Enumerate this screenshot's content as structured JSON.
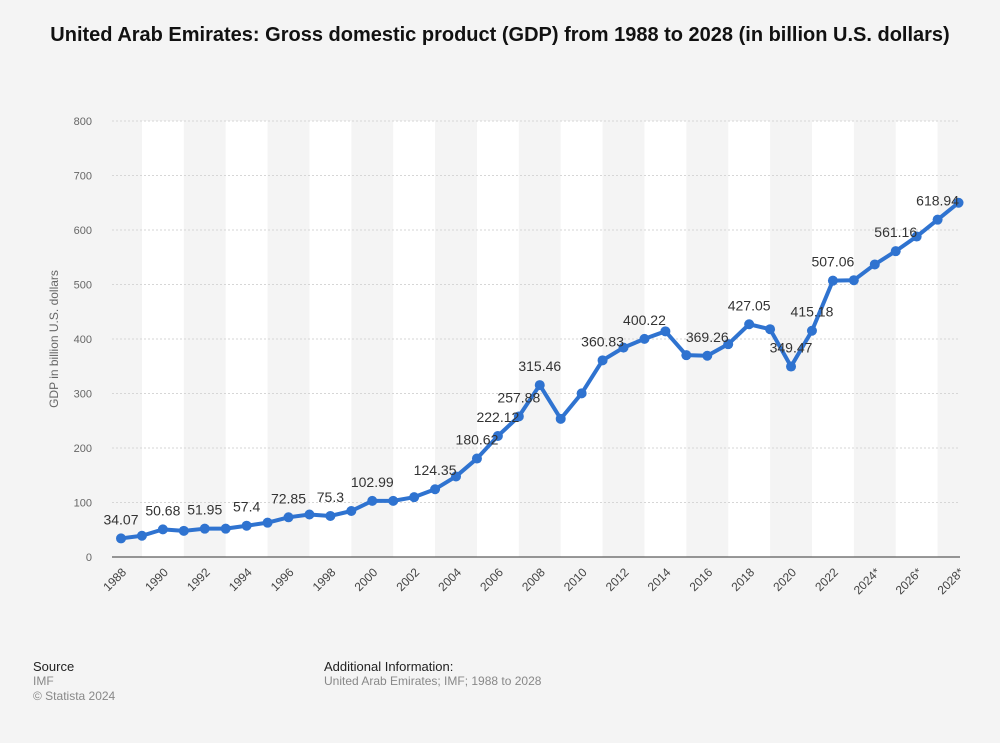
{
  "title": "United Arab Emirates: Gross domestic product (GDP) from 1988 to 2028 (in billion U.S. dollars)",
  "footer": {
    "source_heading": "Source",
    "source_name": "IMF",
    "copyright": "© Statista 2024",
    "info_heading": "Additional Information:",
    "info_text": "United Arab Emirates; IMF; 1988 to 2028"
  },
  "colors": {
    "line": "#2f73d0",
    "band": "#ffffff",
    "grid": "#d6d6d6"
  },
  "chart_data": {
    "type": "line",
    "ylabel": "GDP in billion U.S. dollars",
    "ylim": [
      0,
      800
    ],
    "yticks": [
      0,
      100,
      200,
      300,
      400,
      500,
      600,
      700,
      800
    ],
    "x": [
      "1988",
      "1989",
      "1990",
      "1991",
      "1992",
      "1993",
      "1994",
      "1995",
      "1996",
      "1997",
      "1998",
      "1999",
      "2000",
      "2001",
      "2002",
      "2003",
      "2004",
      "2005",
      "2006",
      "2007",
      "2008",
      "2009",
      "2010",
      "2011",
      "2012",
      "2013",
      "2014",
      "2015",
      "2016",
      "2017",
      "2018",
      "2019",
      "2020",
      "2021",
      "2022",
      "2023",
      "2024*",
      "2025*",
      "2026*",
      "2027*",
      "2028*"
    ],
    "xtick_labels": [
      "1988",
      "1990",
      "1992",
      "1994",
      "1996",
      "1998",
      "2000",
      "2002",
      "2004",
      "2006",
      "2008",
      "2010",
      "2012",
      "2014",
      "2016",
      "2018",
      "2020",
      "2022",
      "2024*",
      "2026*",
      "2028*"
    ],
    "values": [
      34.07,
      39.0,
      50.68,
      48.0,
      51.95,
      52.0,
      57.4,
      63.0,
      72.85,
      78.0,
      75.3,
      84.4,
      102.99,
      103.0,
      109.8,
      124.35,
      147.8,
      180.62,
      222.12,
      257.88,
      315.46,
      253.5,
      300.2,
      360.83,
      384.2,
      400.22,
      414.1,
      370.3,
      369.26,
      390.5,
      427.05,
      417.99,
      349.47,
      415.18,
      507.06,
      507.9,
      536.8,
      561.16,
      588.0,
      618.94,
      650.0
    ],
    "data_labels": [
      {
        "x": "1988",
        "text": "34.07"
      },
      {
        "x": "1990",
        "text": "50.68"
      },
      {
        "x": "1992",
        "text": "51.95"
      },
      {
        "x": "1994",
        "text": "57.4"
      },
      {
        "x": "1996",
        "text": "72.85"
      },
      {
        "x": "1998",
        "text": "75.3"
      },
      {
        "x": "2000",
        "text": "102.99"
      },
      {
        "x": "2003",
        "text": "124.35"
      },
      {
        "x": "2005",
        "text": "180.62"
      },
      {
        "x": "2006",
        "text": "222.12"
      },
      {
        "x": "2007",
        "text": "257.88"
      },
      {
        "x": "2008",
        "text": "315.46"
      },
      {
        "x": "2011",
        "text": "360.83"
      },
      {
        "x": "2013",
        "text": "400.22"
      },
      {
        "x": "2016",
        "text": "369.26"
      },
      {
        "x": "2018",
        "text": "427.05"
      },
      {
        "x": "2020",
        "text": "349.47"
      },
      {
        "x": "2021",
        "text": "415.18"
      },
      {
        "x": "2022",
        "text": "507.06"
      },
      {
        "x": "2025*",
        "text": "561.16"
      },
      {
        "x": "2027*",
        "text": "618.94"
      }
    ],
    "grid": true,
    "legend": "none"
  }
}
